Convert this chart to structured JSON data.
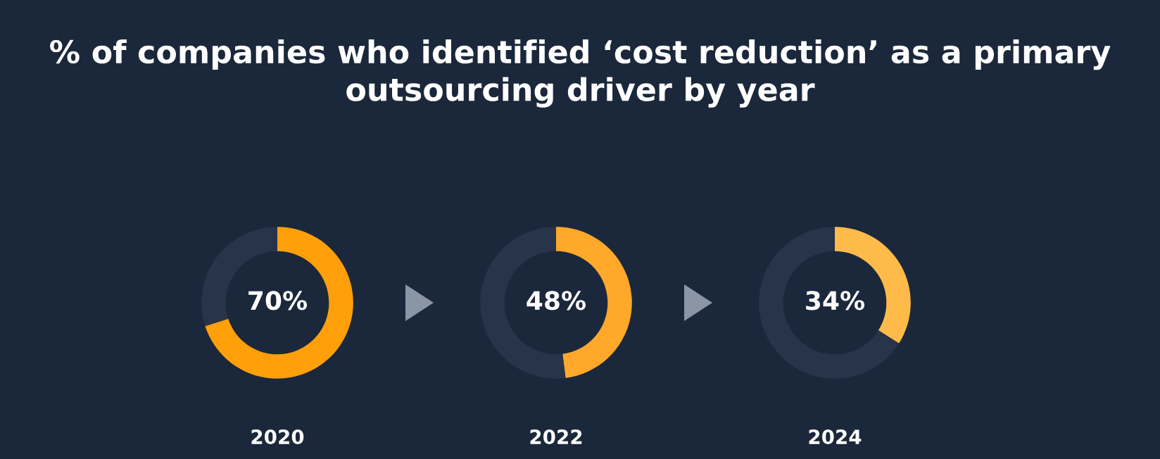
{
  "chart_data": [
    {
      "type": "donut",
      "title": "% of companies who identified ‘cost reduction’ as a primary outsourcing driver by year",
      "categories": [
        null,
        null
      ],
      "values": [
        70,
        30
      ],
      "colors": [
        "#ff9f0a",
        "#27344a"
      ],
      "value_labels": [
        "70%",
        null
      ],
      "xlabel": "2020"
    },
    {
      "type": "donut",
      "categories": [
        null,
        null
      ],
      "values": [
        48,
        52
      ],
      "colors": [
        "#ffa82a",
        "#27344a"
      ],
      "value_labels": [
        "48%",
        null
      ],
      "xlabel": "2022"
    },
    {
      "type": "donut",
      "categories": [
        null,
        null
      ],
      "values": [
        34,
        66
      ],
      "colors": [
        "#ffbb4a",
        "#27344a"
      ],
      "value_labels": [
        "34%",
        null
      ],
      "xlabel": "2024"
    }
  ]
}
